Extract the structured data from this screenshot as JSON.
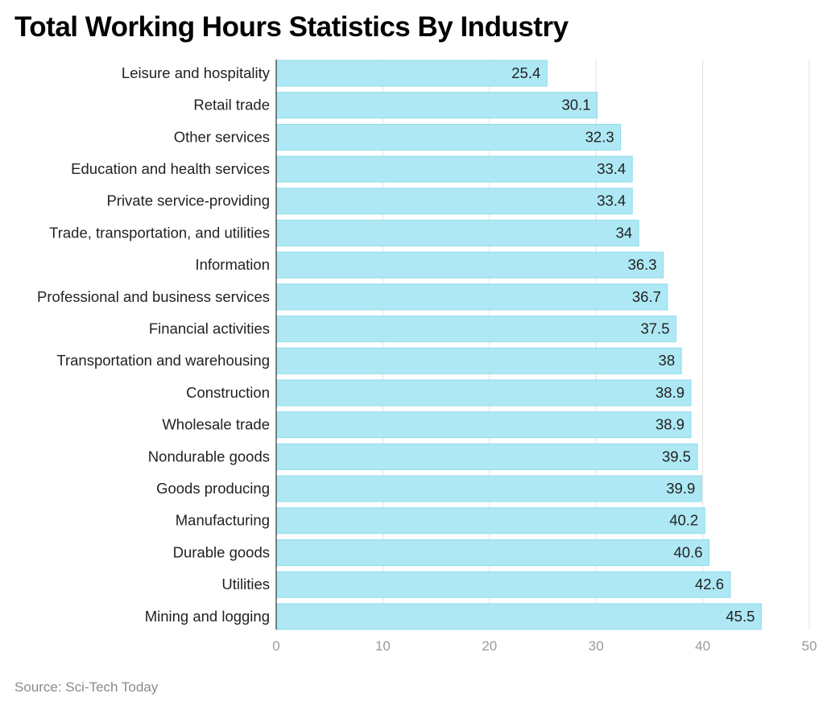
{
  "chart_data": {
    "type": "bar",
    "orientation": "horizontal",
    "title": "Total Working Hours Statistics By Industry",
    "source": "Source: Sci-Tech Today",
    "categories": [
      "Leisure and hospitality",
      "Retail trade",
      "Other services",
      "Education and health services",
      "Private service-providing",
      "Trade, transportation, and utilities",
      "Information",
      "Professional and business services",
      "Financial activities",
      "Transportation and warehousing",
      "Construction",
      "Wholesale trade",
      "Nondurable goods",
      "Goods producing",
      "Manufacturing",
      "Durable goods",
      "Utilities",
      "Mining and logging"
    ],
    "values": [
      25.4,
      30.1,
      32.3,
      33.4,
      33.4,
      34,
      36.3,
      36.7,
      37.5,
      38,
      38.9,
      38.9,
      39.5,
      39.9,
      40.2,
      40.6,
      42.6,
      45.5
    ],
    "xlim": [
      0,
      50
    ],
    "xticks": [
      0,
      10,
      20,
      30,
      40,
      50
    ],
    "grid": true,
    "bar_color": "#ade8f4",
    "bar_border": "#90dcee"
  }
}
